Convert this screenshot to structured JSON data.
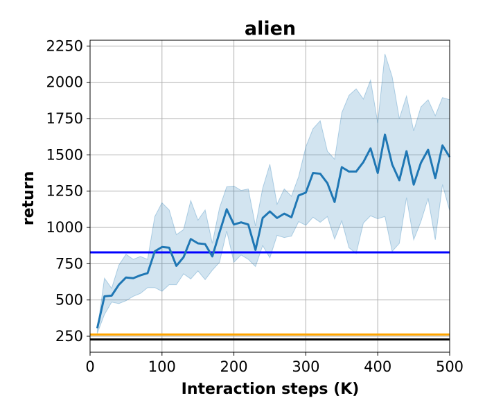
{
  "chart_data": {
    "type": "line",
    "title": "alien",
    "xlabel": "Interaction steps (K)",
    "ylabel": "return",
    "xlim": [
      0,
      500
    ],
    "ylim": [
      140,
      2290
    ],
    "xticks": [
      0,
      100,
      200,
      300,
      400,
      500
    ],
    "yticks": [
      250,
      500,
      750,
      1000,
      1250,
      1500,
      1750,
      2000,
      2250
    ],
    "grid": true,
    "series": [
      {
        "type": "line_with_band",
        "color": "#1f77b4",
        "band_color": "#1f77b4",
        "x": [
          10,
          20,
          30,
          40,
          50,
          60,
          70,
          80,
          90,
          100,
          110,
          120,
          130,
          140,
          150,
          160,
          170,
          180,
          190,
          200,
          210,
          220,
          230,
          240,
          250,
          260,
          270,
          280,
          290,
          300,
          310,
          320,
          330,
          340,
          350,
          360,
          370,
          380,
          390,
          400,
          410,
          420,
          430,
          440,
          450,
          460,
          470,
          480,
          490,
          500
        ],
        "values": [
          305,
          525,
          530,
          605,
          655,
          650,
          670,
          685,
          835,
          865,
          860,
          735,
          795,
          920,
          890,
          885,
          800,
          965,
          1125,
          1020,
          1035,
          1020,
          845,
          1065,
          1110,
          1065,
          1095,
          1070,
          1220,
          1240,
          1375,
          1370,
          1305,
          1175,
          1415,
          1385,
          1385,
          1450,
          1545,
          1375,
          1640,
          1435,
          1325,
          1525,
          1295,
          1445,
          1535,
          1340,
          1565,
          1485
        ],
        "upper": [
          290,
          650,
          580,
          740,
          815,
          780,
          800,
          780,
          1075,
          1170,
          1120,
          950,
          985,
          1185,
          1050,
          1120,
          890,
          1135,
          1280,
          1285,
          1255,
          1265,
          1010,
          1270,
          1435,
          1160,
          1265,
          1215,
          1350,
          1555,
          1680,
          1735,
          1525,
          1470,
          1790,
          1910,
          1955,
          1885,
          2015,
          1720,
          2195,
          2040,
          1750,
          1905,
          1665,
          1830,
          1880,
          1770,
          1895,
          1880
        ],
        "lower": [
          270,
          400,
          485,
          475,
          495,
          525,
          545,
          585,
          585,
          560,
          605,
          605,
          680,
          645,
          700,
          640,
          705,
          760,
          975,
          760,
          810,
          780,
          730,
          875,
          790,
          945,
          930,
          940,
          1040,
          1015,
          1070,
          1035,
          1075,
          920,
          1045,
          860,
          820,
          1030,
          1080,
          1060,
          1075,
          835,
          890,
          1205,
          915,
          1040,
          1200,
          915,
          1295,
          1115
        ]
      },
      {
        "type": "hline",
        "color": "#0000ff",
        "value": 828
      },
      {
        "type": "hline",
        "color": "#ffa500",
        "value": 262
      },
      {
        "type": "hline",
        "color": "#000000",
        "value": 228
      }
    ]
  }
}
